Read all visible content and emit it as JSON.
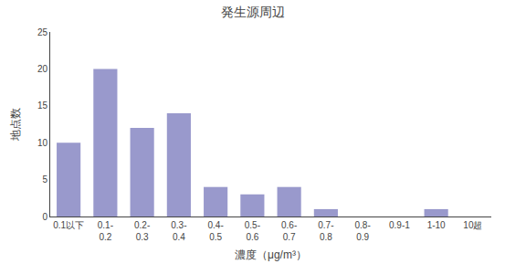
{
  "chart_data": {
    "type": "bar",
    "title": "発生源周辺",
    "categories": [
      "0.1以下",
      "0.1-\n0.2",
      "0.2-\n0.3",
      "0.3-\n0.4",
      "0.4-\n0.5",
      "0.5-\n0.6",
      "0.6-\n0.7",
      "0.7-\n0.8",
      "0.8-\n0.9",
      "0.9-1",
      "1-10",
      "10超"
    ],
    "values": [
      10,
      20,
      12,
      14,
      4,
      3,
      4,
      1,
      0,
      0,
      1,
      0
    ],
    "color": "#9999cc",
    "xlabel": "濃度（μg/m³）",
    "ylabel": "地点数",
    "ylim": [
      0,
      25
    ],
    "yticks": [
      0,
      5,
      10,
      15,
      20,
      25
    ],
    "grid": false
  }
}
